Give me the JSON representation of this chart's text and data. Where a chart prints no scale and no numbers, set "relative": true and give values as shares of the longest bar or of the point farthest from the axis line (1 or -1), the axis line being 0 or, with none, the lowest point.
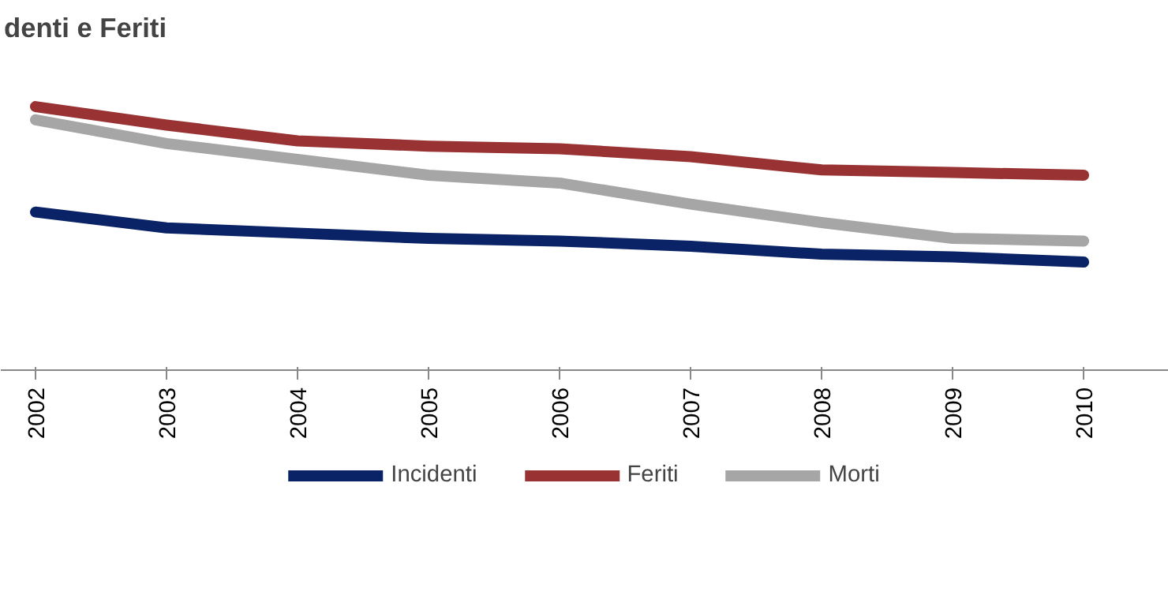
{
  "chart_data": {
    "type": "line",
    "title": "denti e Feriti",
    "relative": true,
    "categories": [
      "2002",
      "2003",
      "2004",
      "2005",
      "2006",
      "2007",
      "2008",
      "2009",
      "2010"
    ],
    "series": [
      {
        "name": "Incidenti",
        "color": "#0a2266",
        "values": [
          0.6,
          0.54,
          0.52,
          0.5,
          0.49,
          0.47,
          0.44,
          0.43,
          0.41
        ]
      },
      {
        "name": "Feriti",
        "color": "#993333",
        "values": [
          1.0,
          0.93,
          0.87,
          0.85,
          0.84,
          0.81,
          0.76,
          0.75,
          0.74
        ]
      },
      {
        "name": "Morti",
        "color": "#a6a6a6",
        "values": [
          0.95,
          0.86,
          0.8,
          0.74,
          0.71,
          0.63,
          0.56,
          0.5,
          0.49
        ]
      }
    ],
    "legend": "bottom",
    "marker": "none",
    "line_style": "solid"
  }
}
